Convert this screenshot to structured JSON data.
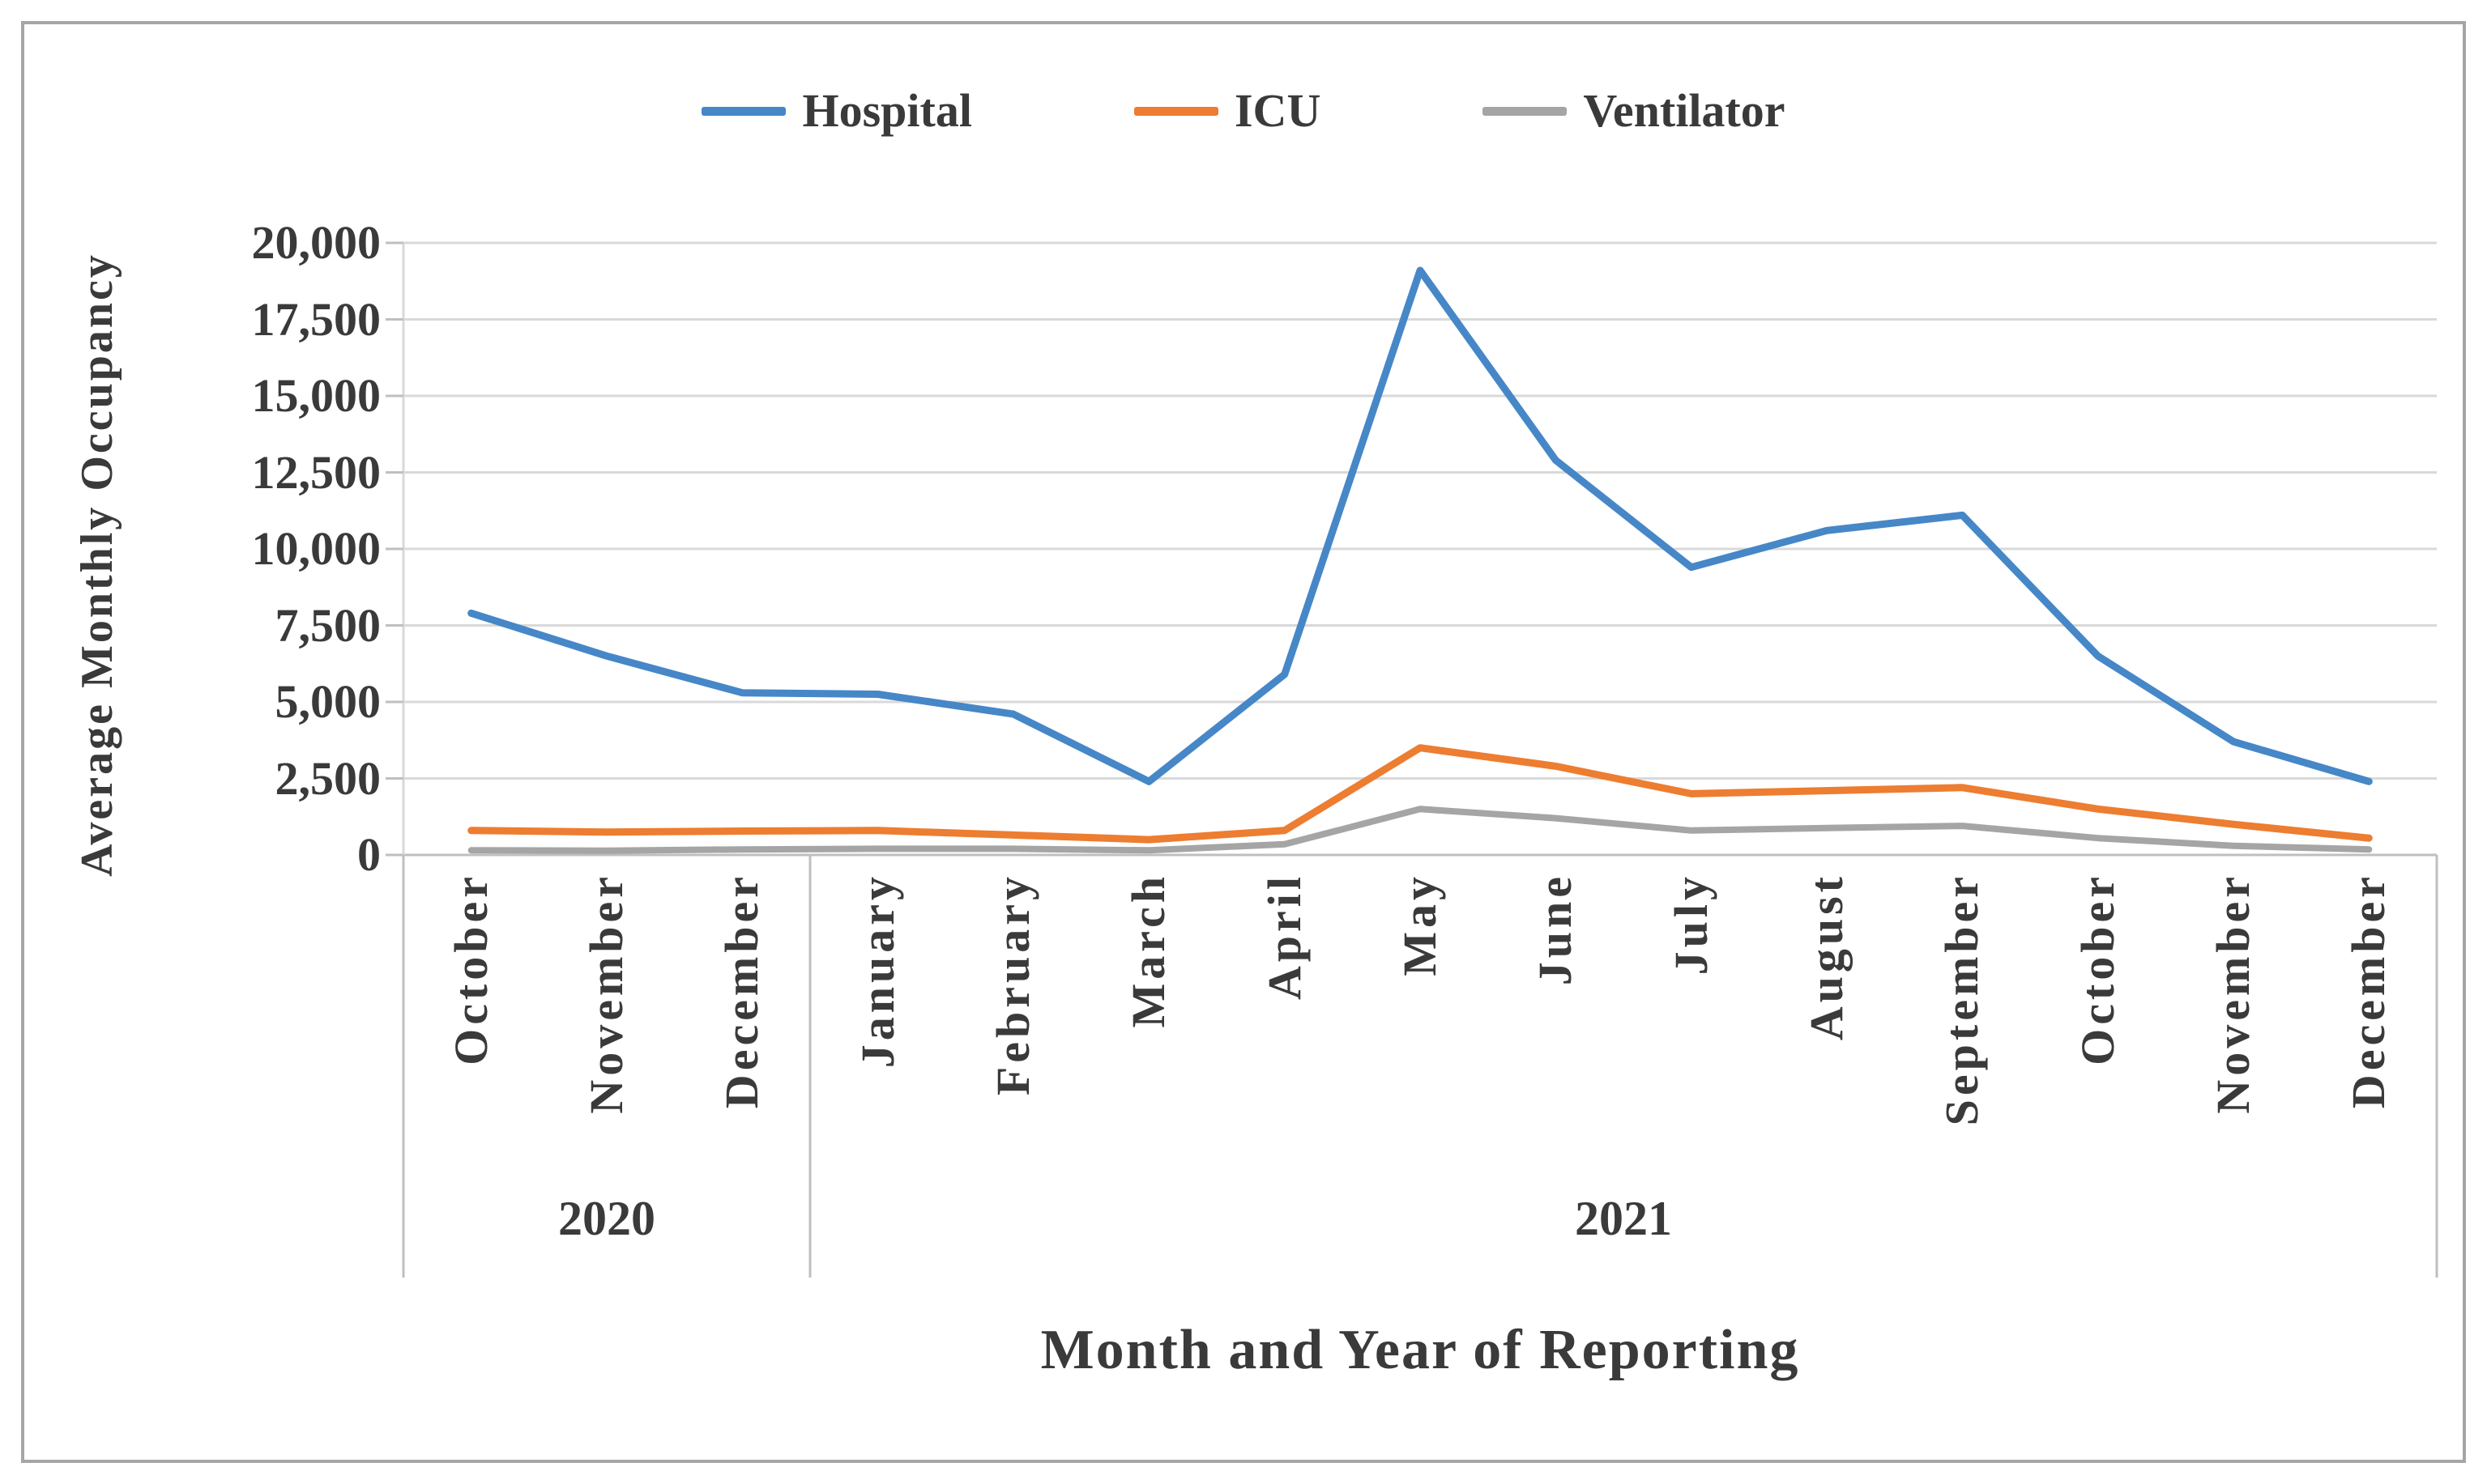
{
  "figure": {
    "frame_border_color": "#a6a6a6",
    "background_color": "#ffffff",
    "text_color": "#3a3a3a",
    "gridline_color": "#d9d9d9",
    "axis_line_color": "#bfbfbf"
  },
  "chart_data": {
    "type": "line",
    "title": "",
    "xlabel": "Month and Year of Reporting",
    "ylabel": "Average Monthly Occupancy",
    "ylim": [
      0,
      20000
    ],
    "y_tick_step": 2500,
    "y_tick_labels": [
      "0",
      "2,500",
      "5,000",
      "7,500",
      "10,000",
      "12,500",
      "15,000",
      "17,500",
      "20,000"
    ],
    "grid": "horizontal",
    "legend_position": "top",
    "categories": [
      "October",
      "November",
      "December",
      "January",
      "February",
      "March",
      "April",
      "May",
      "June",
      "July",
      "August",
      "September",
      "October",
      "November",
      "December"
    ],
    "x_groups": [
      {
        "label": "2020",
        "span": 3
      },
      {
        "label": "2021",
        "span": 12
      }
    ],
    "series": [
      {
        "name": "Hospital",
        "color": "#4687c7",
        "values": [
          7900,
          6500,
          5300,
          5250,
          4600,
          2400,
          5900,
          19100,
          12900,
          9400,
          10600,
          11100,
          6500,
          3700,
          2400
        ]
      },
      {
        "name": "ICU",
        "color": "#ed7d31",
        "values": [
          800,
          750,
          780,
          800,
          650,
          500,
          800,
          3500,
          2900,
          2000,
          2100,
          2200,
          1500,
          1000,
          550
        ]
      },
      {
        "name": "Ventilator",
        "color": "#a5a5a5",
        "values": [
          150,
          140,
          180,
          200,
          200,
          150,
          350,
          1500,
          1200,
          800,
          880,
          950,
          550,
          300,
          180
        ]
      }
    ]
  }
}
